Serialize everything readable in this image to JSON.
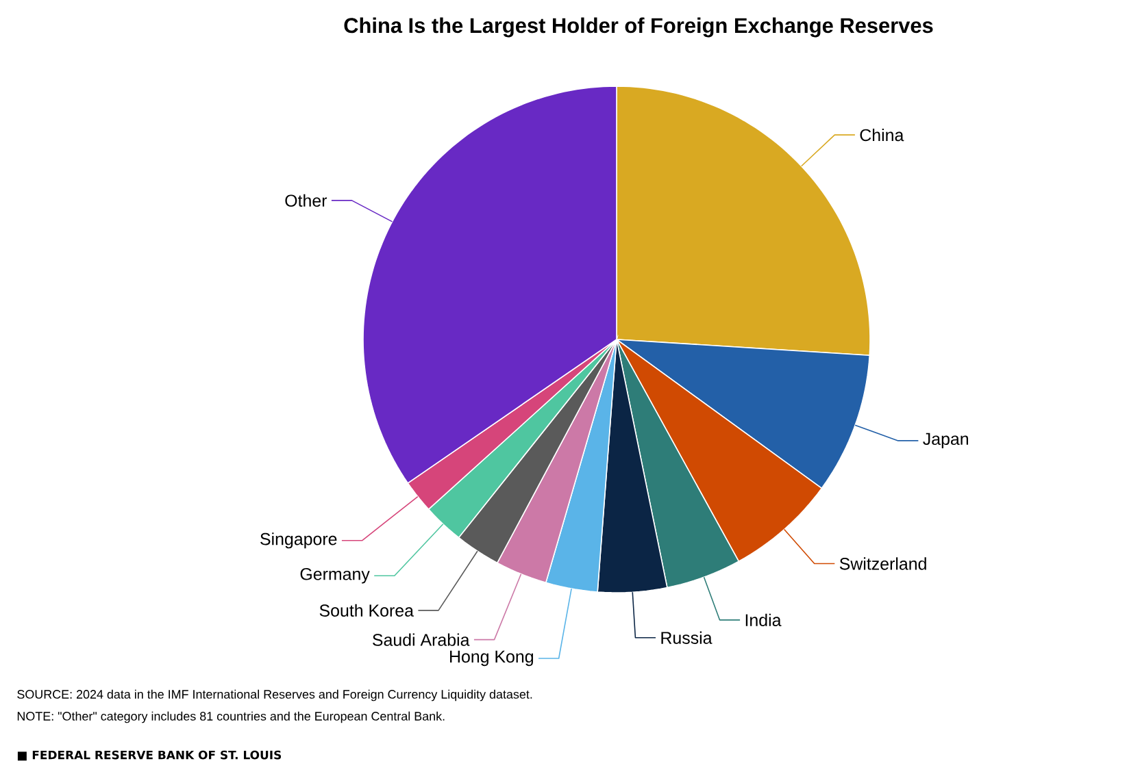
{
  "chart_data": {
    "type": "pie",
    "title": "China Is the Largest Holder of Foreign Exchange Reserves",
    "categories": [
      "China",
      "Japan",
      "Switzerland",
      "India",
      "Russia",
      "Hong Kong",
      "Saudi Arabia",
      "South Korea",
      "Germany",
      "Singapore",
      "Other"
    ],
    "values": [
      26,
      9,
      7,
      4.8,
      4.4,
      3.3,
      3.3,
      2.9,
      2.6,
      2.1,
      34.6
    ],
    "colors": [
      "#d9a922",
      "#2360a8",
      "#d04a02",
      "#2e7d78",
      "#0b2545",
      "#5ab4e8",
      "#cc79a7",
      "#5a5a5a",
      "#4fc6a0",
      "#d6457a",
      "#6829c4"
    ],
    "annotations": [
      "SOURCE: 2024 data in the IMF International Reserves and Foreign Currency Liquidity dataset.",
      "NOTE: \"Other\" category includes 81 countries and the European Central Bank.",
      "■ FEDERAL RESERVE BANK OF ST. LOUIS"
    ]
  }
}
